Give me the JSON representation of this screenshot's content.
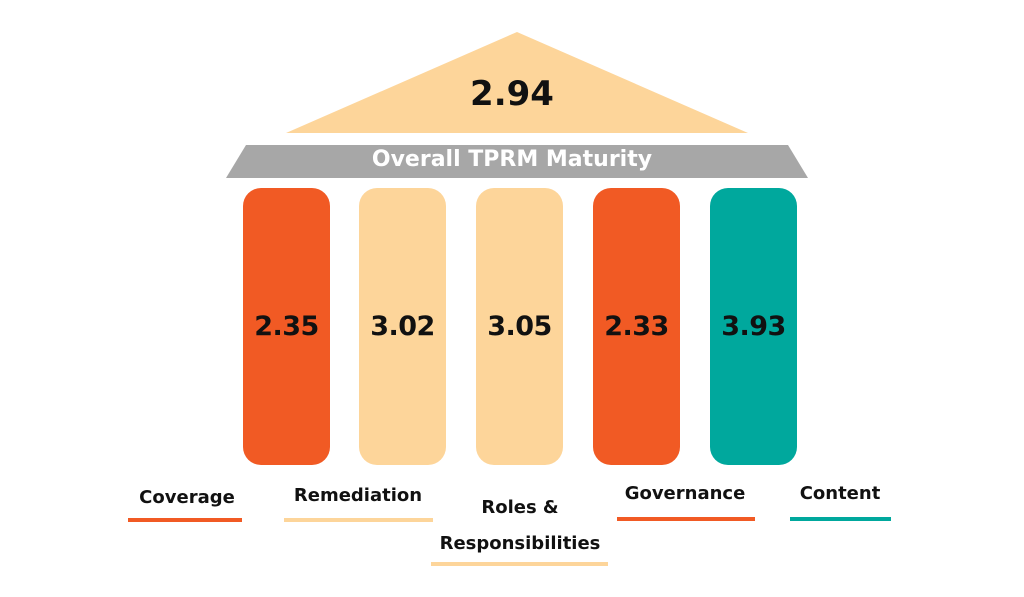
{
  "overall": {
    "value": "2.94",
    "label": "Overall TPRM Maturity"
  },
  "colors": {
    "orange": "#f15a24",
    "peach": "#fdd59a",
    "teal": "#00a89d",
    "gray": "#a7a7a7"
  },
  "pillars": [
    {
      "name": "Coverage",
      "value": "2.35",
      "color": "#f15a24"
    },
    {
      "name": "Remediation",
      "value": "3.02",
      "color": "#fdd59a"
    },
    {
      "name": "Roles &",
      "name2": "Responsibilities",
      "value": "3.05",
      "color": "#fdd59a"
    },
    {
      "name": "Governance",
      "value": "2.33",
      "color": "#f15a24"
    },
    {
      "name": "Content",
      "value": "3.93",
      "color": "#00a89d"
    }
  ]
}
